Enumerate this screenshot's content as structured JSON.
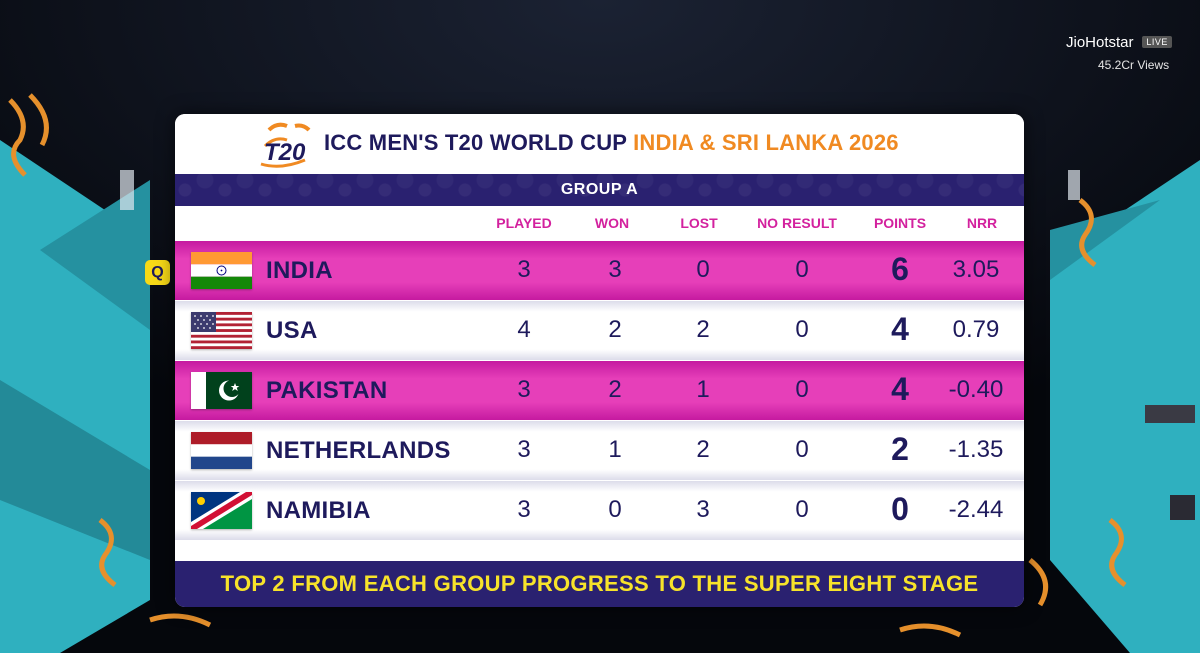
{
  "broadcaster": {
    "name": "JioHotstar",
    "live_label": "LIVE",
    "views": "45.2Cr Views"
  },
  "logo": {
    "text": "T20"
  },
  "title": {
    "main": "ICC MEN'S T20 WORLD CUP",
    "host": "INDIA & SRI LANKA 2026"
  },
  "group": "GROUP A",
  "columns": [
    "PLAYED",
    "WON",
    "LOST",
    "NO RESULT",
    "POINTS",
    "NRR"
  ],
  "qualified_marker": "Q",
  "rows": [
    {
      "team": "INDIA",
      "played": "3",
      "won": "3",
      "lost": "0",
      "no_result": "0",
      "points": "6",
      "nrr": "3.05",
      "qualified": true
    },
    {
      "team": "USA",
      "played": "4",
      "won": "2",
      "lost": "2",
      "no_result": "0",
      "points": "4",
      "nrr": "0.79",
      "qualified": false
    },
    {
      "team": "PAKISTAN",
      "played": "3",
      "won": "2",
      "lost": "1",
      "no_result": "0",
      "points": "4",
      "nrr": "-0.40",
      "qualified": false
    },
    {
      "team": "NETHERLANDS",
      "played": "3",
      "won": "1",
      "lost": "2",
      "no_result": "0",
      "points": "2",
      "nrr": "-1.35",
      "qualified": false
    },
    {
      "team": "NAMIBIA",
      "played": "3",
      "won": "0",
      "lost": "3",
      "no_result": "0",
      "points": "0",
      "nrr": "-2.44",
      "qualified": false
    }
  ],
  "footer": "TOP 2 FROM EACH GROUP PROGRESS TO THE SUPER EIGHT STAGE",
  "colors": {
    "navy": "#1e1a5c",
    "pink": "#e63fb9",
    "orange": "#f08a22",
    "yellow": "#f7e32a",
    "teal": "#2fb0bf"
  }
}
